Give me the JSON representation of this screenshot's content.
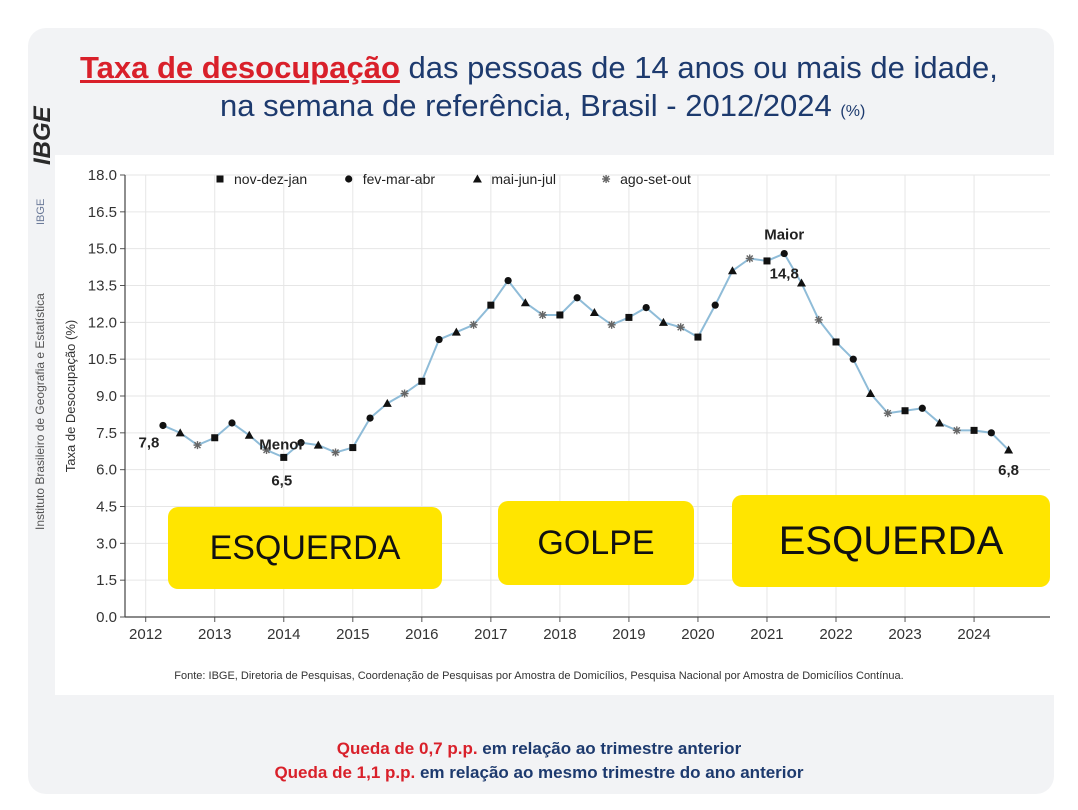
{
  "header": {
    "title_highlight": "Taxa de desocupação",
    "title_rest": " das pessoas de 14 anos ou mais de idade,",
    "title_line2": "na semana de referência, Brasil - 2012/2024",
    "title_unit": "(%)"
  },
  "side": {
    "logo_text": "IBGE",
    "institute_text": "Instituto Brasileiro de Geografia e Estatística",
    "institute_abbr": "IBGE"
  },
  "chart_data": {
    "type": "line",
    "ylabel": "Taxa de Desocupação (%)",
    "xlabel": "",
    "ylim": [
      0,
      18
    ],
    "yticks": [
      "0.0",
      "1.5",
      "3.0",
      "4.5",
      "6.0",
      "7.5",
      "9.0",
      "10.5",
      "12.0",
      "13.5",
      "15.0",
      "16.5",
      "18.0"
    ],
    "xticks": [
      "2012",
      "2013",
      "2014",
      "2015",
      "2016",
      "2017",
      "2018",
      "2019",
      "2020",
      "2021",
      "2022",
      "2023",
      "2024"
    ],
    "grid": true,
    "legend_position": "top-left",
    "legend": [
      {
        "label": "nov-dez-jan",
        "marker": "square"
      },
      {
        "label": "fev-mar-abr",
        "marker": "circle"
      },
      {
        "label": "mai-jun-jul",
        "marker": "triangle"
      },
      {
        "label": "ago-set-out",
        "marker": "asterisk"
      }
    ],
    "series_color": "#8fbcd8",
    "points": [
      {
        "x": 2012.25,
        "y": 7.8,
        "m": "circle"
      },
      {
        "x": 2012.5,
        "y": 7.5,
        "m": "triangle"
      },
      {
        "x": 2012.75,
        "y": 7.0,
        "m": "asterisk"
      },
      {
        "x": 2013.0,
        "y": 7.3,
        "m": "square"
      },
      {
        "x": 2013.25,
        "y": 7.9,
        "m": "circle"
      },
      {
        "x": 2013.5,
        "y": 7.4,
        "m": "triangle"
      },
      {
        "x": 2013.75,
        "y": 6.8,
        "m": "asterisk"
      },
      {
        "x": 2014.0,
        "y": 6.5,
        "m": "square"
      },
      {
        "x": 2014.25,
        "y": 7.1,
        "m": "circle"
      },
      {
        "x": 2014.5,
        "y": 7.0,
        "m": "triangle"
      },
      {
        "x": 2014.75,
        "y": 6.7,
        "m": "asterisk"
      },
      {
        "x": 2015.0,
        "y": 6.9,
        "m": "square"
      },
      {
        "x": 2015.25,
        "y": 8.1,
        "m": "circle"
      },
      {
        "x": 2015.5,
        "y": 8.7,
        "m": "triangle"
      },
      {
        "x": 2015.75,
        "y": 9.1,
        "m": "asterisk"
      },
      {
        "x": 2016.0,
        "y": 9.6,
        "m": "square"
      },
      {
        "x": 2016.25,
        "y": 11.3,
        "m": "circle"
      },
      {
        "x": 2016.5,
        "y": 11.6,
        "m": "triangle"
      },
      {
        "x": 2016.75,
        "y": 11.9,
        "m": "asterisk"
      },
      {
        "x": 2017.0,
        "y": 12.7,
        "m": "square"
      },
      {
        "x": 2017.25,
        "y": 13.7,
        "m": "circle"
      },
      {
        "x": 2017.5,
        "y": 12.8,
        "m": "triangle"
      },
      {
        "x": 2017.75,
        "y": 12.3,
        "m": "asterisk"
      },
      {
        "x": 2018.0,
        "y": 12.3,
        "m": "square"
      },
      {
        "x": 2018.25,
        "y": 13.0,
        "m": "circle"
      },
      {
        "x": 2018.5,
        "y": 12.4,
        "m": "triangle"
      },
      {
        "x": 2018.75,
        "y": 11.9,
        "m": "asterisk"
      },
      {
        "x": 2019.0,
        "y": 12.2,
        "m": "square"
      },
      {
        "x": 2019.25,
        "y": 12.6,
        "m": "circle"
      },
      {
        "x": 2019.5,
        "y": 12.0,
        "m": "triangle"
      },
      {
        "x": 2019.75,
        "y": 11.8,
        "m": "asterisk"
      },
      {
        "x": 2020.0,
        "y": 11.4,
        "m": "square"
      },
      {
        "x": 2020.25,
        "y": 12.7,
        "m": "circle"
      },
      {
        "x": 2020.5,
        "y": 14.1,
        "m": "triangle"
      },
      {
        "x": 2020.75,
        "y": 14.6,
        "m": "asterisk"
      },
      {
        "x": 2021.0,
        "y": 14.5,
        "m": "square"
      },
      {
        "x": 2021.25,
        "y": 14.8,
        "m": "circle"
      },
      {
        "x": 2021.5,
        "y": 13.6,
        "m": "triangle"
      },
      {
        "x": 2021.75,
        "y": 12.1,
        "m": "asterisk"
      },
      {
        "x": 2022.0,
        "y": 11.2,
        "m": "square"
      },
      {
        "x": 2022.25,
        "y": 10.5,
        "m": "circle"
      },
      {
        "x": 2022.5,
        "y": 9.1,
        "m": "triangle"
      },
      {
        "x": 2022.75,
        "y": 8.3,
        "m": "asterisk"
      },
      {
        "x": 2023.0,
        "y": 8.4,
        "m": "square"
      },
      {
        "x": 2023.25,
        "y": 8.5,
        "m": "circle"
      },
      {
        "x": 2023.5,
        "y": 7.9,
        "m": "triangle"
      },
      {
        "x": 2023.75,
        "y": 7.6,
        "m": "asterisk"
      },
      {
        "x": 2024.0,
        "y": 7.6,
        "m": "square"
      },
      {
        "x": 2024.25,
        "y": 7.5,
        "m": "circle"
      },
      {
        "x": 2024.5,
        "y": 6.8,
        "m": "triangle"
      }
    ],
    "annotations": [
      {
        "text": "7,8",
        "x": 2012.25,
        "y": 7.8,
        "kind": "value"
      },
      {
        "text": "Menor",
        "x": 2014.0,
        "y": 6.5,
        "kind": "label"
      },
      {
        "text": "6,5",
        "x": 2014.0,
        "y": 6.5,
        "kind": "value"
      },
      {
        "text": "Maior",
        "x": 2021.25,
        "y": 14.8,
        "kind": "label"
      },
      {
        "text": "14,8",
        "x": 2021.25,
        "y": 14.8,
        "kind": "value"
      },
      {
        "text": "6,8",
        "x": 2024.5,
        "y": 6.8,
        "kind": "value"
      }
    ],
    "overlay_labels": [
      "ESQUERDA",
      "GOLPE",
      "ESQUERDA"
    ],
    "overlay_color": "#ffe500"
  },
  "source": "Fonte: IBGE, Diretoria de Pesquisas, Coordenação de Pesquisas por Amostra de Domicílios, Pesquisa Nacional por Amostra de Domicílios Contínua.",
  "footer": {
    "line1_red": "Queda de 0,7 p.p.",
    "line1_rest": " em relação ao trimestre anterior",
    "line2_red": "Queda de 1,1 p.p.",
    "line2_rest": " em relação ao mesmo trimestre do ano anterior"
  }
}
